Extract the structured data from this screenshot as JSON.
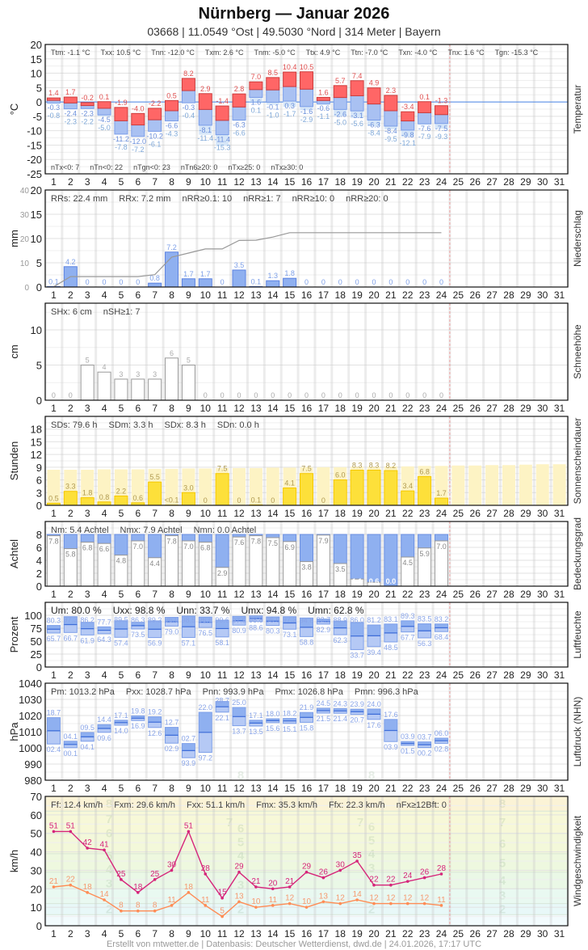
{
  "header": {
    "title": "Nürnberg  —  Januar 2026",
    "subtitle": "03668  |  11.0549 °Ost  |  49.5030 °Nord  |  314 Meter  |  Bayern"
  },
  "footer": "Erstellt von mtwetter.de | Datenbasis: Deutscher Wetterdienst, dwd.de | 24.01.2026, 17:17 UTC",
  "days": [
    1,
    2,
    3,
    4,
    5,
    6,
    7,
    8,
    9,
    10,
    11,
    12,
    13,
    14,
    15,
    16,
    17,
    18,
    19,
    20,
    21,
    22,
    23,
    24,
    25,
    26,
    27,
    28,
    29,
    30,
    31
  ],
  "colors": {
    "tmax": "#ff6666",
    "tmin": "#a9c1f2",
    "tgmin": "#d6e6f8",
    "bar_blue": "#8fb0f0",
    "sun": "#fde03a",
    "sun_possible": "#fdf3c4",
    "gust": "#d6247a",
    "wind_mean": "#ff8c55",
    "today_line": "#f0a0a0"
  },
  "chart_data": [
    {
      "type": "bar",
      "side_label": "Temperatur",
      "ylabel": "°C",
      "ylim": [
        -25,
        20
      ],
      "yticks": [
        20,
        15,
        10,
        5,
        0,
        -5,
        -10,
        -15,
        -20,
        -25
      ],
      "stats": [
        "Ttm: -1.1 °C",
        "Txx: 10.5 °C",
        "Tnn: -12.0 °C",
        "Txm: 2.6 °C",
        "Tnm: -5.0 °C",
        "Ttx: 4.9 °C",
        "Ttn: -7.0 °C",
        "Txn: -4.0 °C",
        "Tnx: 1.6 °C",
        "Tgn: -15.3 °C"
      ],
      "stats_bottom": [
        "nTx<0: 7",
        "nTn<0: 22",
        "nTgn<0: 23",
        "nTn6≥20: 0",
        "nTx≥25: 0",
        "nTx≥30: 0"
      ],
      "series": {
        "tmax": [
          1.4,
          1.7,
          -0.2,
          0.1,
          -1.9,
          -4.0,
          -2.2,
          0.5,
          8.2,
          2.9,
          -1.4,
          2.8,
          7.0,
          8.5,
          10.4,
          10.5,
          1.6,
          5.7,
          7.4,
          4.9,
          2.3,
          -3.4,
          0.1,
          -1.3
        ],
        "tmin": [
          -0.3,
          -2.4,
          -2.3,
          -4.5,
          -11.2,
          -12.0,
          -10.2,
          -6.6,
          -0.3,
          -8.1,
          -11.4,
          -6.3,
          1.6,
          -0.1,
          0.3,
          -1.6,
          -0.6,
          -2.6,
          -3.1,
          -6.3,
          -8.4,
          -9.8,
          -7.6,
          -7.5
        ],
        "tgmin": [
          -0.8,
          -2.3,
          -2.2,
          -5.0,
          -7.8,
          -7.2,
          -6.1,
          -4.3,
          -0.4,
          -11.4,
          -15.3,
          -6.6,
          0.1,
          -1.0,
          -1.7,
          -2.9,
          -1.1,
          -5.0,
          -5.6,
          -8.4,
          -9.5,
          -12.1,
          -7.9,
          -9.3
        ]
      }
    },
    {
      "type": "bar",
      "side_label": "Niederschlag",
      "ylabel": "mm",
      "ylim": [
        0,
        20
      ],
      "y2lim": [
        0,
        40
      ],
      "yticks": [
        0,
        5,
        10,
        15,
        20
      ],
      "y2ticks": [
        0,
        10,
        20,
        30,
        40
      ],
      "stats": [
        "RRs: 22.4 mm",
        "RRx: 7.2 mm",
        "nRR≥0.1: 10",
        "nRR≥1: 7",
        "nRR≥10: 0",
        "nRR≥20: 0"
      ],
      "series": {
        "precip": [
          0.1,
          4.2,
          0,
          0,
          0,
          0,
          0.8,
          7.2,
          1.7,
          1.7,
          0,
          3.5,
          0.1,
          1.3,
          1.8,
          0,
          0,
          0,
          0,
          0,
          0,
          0,
          0,
          0
        ]
      }
    },
    {
      "type": "bar",
      "side_label": "Schneehöhe",
      "ylabel": "cm",
      "ylim": [
        0,
        13.8
      ],
      "yticks": [
        0,
        5,
        10
      ],
      "stats": [
        "SHx: 6 cm",
        "nSH≥1: 7"
      ],
      "series": {
        "snow": [
          0,
          0,
          5,
          4,
          3,
          3,
          3,
          6,
          5,
          0,
          0,
          0,
          0,
          0,
          0,
          0,
          0,
          0,
          0,
          0,
          0,
          0,
          0,
          0
        ]
      }
    },
    {
      "type": "bar",
      "side_label": "Sonnenscheindauer",
      "ylabel": "Stunden",
      "ylim": [
        0,
        21
      ],
      "yticks": [
        0,
        3,
        6,
        9,
        12,
        15,
        18
      ],
      "stats": [
        "SDs: 79.6 h",
        "SDm: 3.3 h",
        "SDx: 8.3 h",
        "SDn: 0.0 h"
      ],
      "series": {
        "sunshine": [
          0.5,
          3.3,
          1.8,
          0.8,
          2.2,
          0.6,
          5.5,
          "<0.1",
          3.0,
          0,
          7.5,
          0,
          0.1,
          0,
          4.1,
          7.5,
          0,
          6.0,
          8.3,
          8.3,
          8.2,
          3.4,
          6.8,
          1.7
        ],
        "possible": [
          8.4,
          8.4,
          8.4,
          8.5,
          8.5,
          8.5,
          8.6,
          8.6,
          8.7,
          8.7,
          8.8,
          8.8,
          8.8,
          8.9,
          8.9,
          9.0,
          9.0,
          9.0,
          9.1,
          9.1,
          9.2,
          9.2,
          9.3,
          9.3,
          9.4,
          9.4,
          9.5,
          9.5,
          9.6,
          9.7,
          9.7
        ]
      }
    },
    {
      "type": "bar",
      "side_label": "Bedeckungsgrad",
      "ylabel": "Achtel",
      "ylim": [
        0,
        10
      ],
      "yticks": [
        0,
        2,
        4,
        6,
        8
      ],
      "stats": [
        "Nm: 5.4 Achtel",
        "Nmx: 7.9 Achtel",
        "Nmn: 0.0 Achtel"
      ],
      "series": {
        "cloud": [
          7.8,
          5.8,
          6.8,
          6.6,
          4.8,
          7.0,
          4.4,
          7.8,
          7.0,
          6.8,
          2.9,
          7.6,
          7.8,
          7.5,
          6.9,
          3.8,
          7.9,
          3.5,
          1.1,
          0.6,
          0.0,
          4.5,
          5.9,
          7.0
        ]
      }
    },
    {
      "type": "bar",
      "side_label": "Luftfeuchte",
      "ylabel": "Prozent",
      "ylim": [
        0,
        125
      ],
      "yticks": [
        0,
        25,
        50,
        75,
        100
      ],
      "stats": [
        "Um: 80.0 %",
        "Uxx: 98.8 %",
        "Unn: 33.7 %",
        "Umx: 94.8 %",
        "Umn: 62.8 %"
      ],
      "series": {
        "max": [
          80.3,
          97.3,
          86.2,
          77.7,
          89.5,
          86.3,
          89.2,
          96.0,
          98.5,
          96.6,
          90.6,
          97.9,
          98.8,
          96.9,
          97.3,
          94.8,
          92.7,
          88.9,
          86.0,
          81.2,
          83.1,
          89.3,
          83.5,
          83.2
        ],
        "min": [
          65.7,
          66.7,
          61.9,
          64.3,
          57.4,
          73.5,
          56.9,
          79.0,
          57.1,
          76.5,
          58.1,
          80.9,
          88.6,
          80.3,
          73.1,
          58.8,
          82.9,
          62.3,
          33.7,
          39.4,
          48.5,
          67.7,
          56.3,
          68.4
        ]
      }
    },
    {
      "type": "bar",
      "side_label": "Luftdruck (NHN)",
      "ylabel": "hPa",
      "ylim": [
        980,
        1040
      ],
      "yticks": [
        980,
        990,
        1000,
        1010,
        1020,
        1030,
        1040
      ],
      "stats": [
        "Pm: 1013.2 hPa",
        "Pxx: 1028.7 hPa",
        "Pnn: 993.9 hPa",
        "Pmx: 1026.8 hPa",
        "Pmn: 996.3 hPa"
      ],
      "series": {
        "max": [
          1018.7,
          1004.1,
          1009.5,
          1014.4,
          1017.1,
          1019.8,
          1019.2,
          1012.7,
          1002.7,
          1022.0,
          1028.7,
          1025.0,
          1017.1,
          1018.0,
          1018.2,
          1021.9,
          1024.5,
          1024.3,
          1023.9,
          1024.0,
          1017.6,
          1003.9,
          1003.7,
          1006.0
        ],
        "min": [
          1002.4,
          1000.1,
          1004.1,
          1009.6,
          1014.0,
          1016.9,
          1012.6,
          1002.9,
          993.9,
          997.2,
          1022.1,
          1013.7,
          1013.5,
          1015.6,
          1015.1,
          1015.8,
          1021.5,
          1021.4,
          1020.7,
          1017.6,
          1003.9,
          1001.5,
          1000.2,
          1002.8
        ]
      }
    },
    {
      "type": "line",
      "side_label": "Windgeschwindigkeit",
      "ylabel": "km/h",
      "ylim": [
        0,
        70
      ],
      "yticks": [
        0,
        10,
        20,
        30,
        40,
        50,
        60,
        70
      ],
      "stats": [
        "Ff: 12.4 km/h",
        "Fxm: 29.6 km/h",
        "Fxx: 51.1 km/h",
        "Fmx: 35.3 km/h",
        "Ffx: 22.3 km/h",
        "nFx≥12Bft: 0"
      ],
      "beaufort_labels": [
        "2",
        "3",
        "4",
        "5",
        "6",
        "7",
        "8"
      ],
      "series": {
        "gust": [
          51,
          51,
          42,
          41,
          25,
          18,
          25,
          30,
          51,
          28,
          15,
          29,
          21,
          20,
          21,
          29,
          26,
          30,
          35,
          22,
          22,
          24,
          26,
          28
        ],
        "mean": [
          21,
          22,
          18,
          14,
          8,
          8,
          8,
          11,
          18,
          11,
          5,
          13,
          10,
          11,
          12,
          10,
          13,
          12,
          14,
          12,
          12,
          12,
          12,
          11
        ]
      }
    }
  ]
}
